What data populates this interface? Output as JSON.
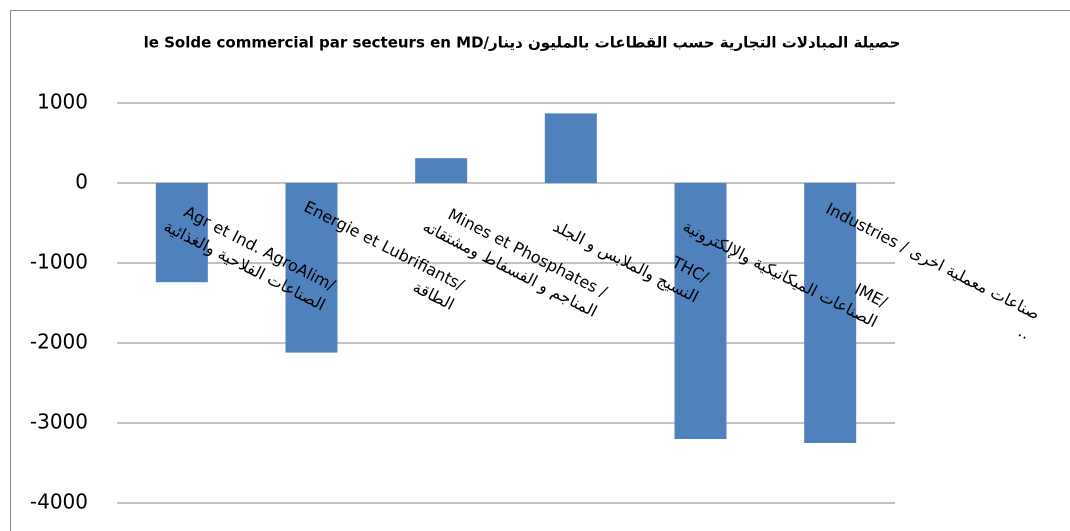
{
  "chart_data": {
    "type": "bar",
    "title": "le Solde commercial par secteurs en MD/حصيلة المبادلات التجارية حسب القطاعات بالمليون دينار",
    "categories": [
      "Agr et Ind. AgroAlim/\nالصناعات الفلاحية والغذائية",
      "Energie et Lubrifiants/\nالطاقة",
      "Mines et Phosphates /\nالمناجم و الفسفاط ومشتقاته",
      "THC/\nالنسيج والملابس و الجلد",
      "IME/\nالصناعات الميكانيكية والإلكترونية",
      "Industries / صناعات معملية اخرى .."
    ],
    "values": [
      -1240,
      -2120,
      310,
      870,
      -3200,
      -3250
    ],
    "color": "#4f81bd",
    "ylim": [
      -4000,
      1000
    ],
    "yticks": [
      -4000,
      -3000,
      -2000,
      -1000,
      0,
      1000
    ],
    "grid": true
  }
}
